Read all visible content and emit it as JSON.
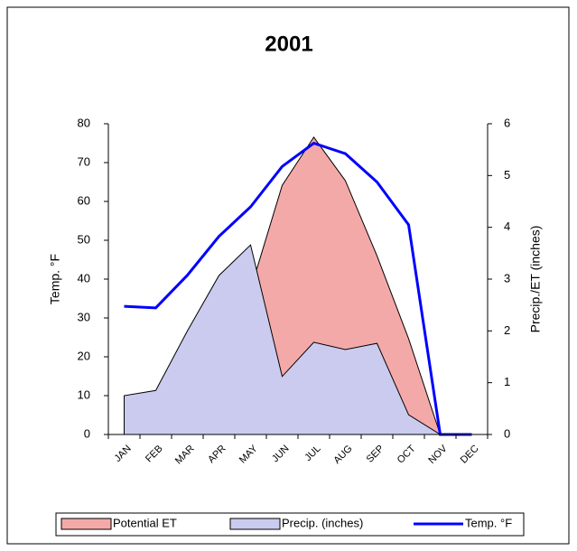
{
  "chart_data": {
    "type": "area-line",
    "title": "2001",
    "y_label": "Temp. °F",
    "y2_label": "Precip./ET (inches)",
    "categories": [
      "JAN",
      "FEB",
      "MAR",
      "APR",
      "MAY",
      "JUN",
      "JUL",
      "AUG",
      "SEP",
      "OCT",
      "NOV",
      "DEC"
    ],
    "series": [
      {
        "name": "Potential ET",
        "kind": "area",
        "axis": "y2",
        "color": "#f4a9a9",
        "values": [
          null,
          null,
          null,
          null,
          2.8,
          4.81,
          5.74,
          4.9,
          3.45,
          1.85,
          0,
          null
        ]
      },
      {
        "name": "Precip. (inches)",
        "kind": "area",
        "axis": "y2",
        "color": "#cbcbef",
        "values": [
          0.75,
          0.85,
          2.0,
          3.07,
          3.66,
          1.12,
          1.78,
          1.64,
          1.76,
          0.38,
          0,
          null
        ]
      },
      {
        "name": "Temp. °F",
        "kind": "line",
        "axis": "y",
        "color": "#0000ff",
        "values": [
          33,
          32.6,
          41,
          51,
          58.6,
          69,
          75,
          72.3,
          65,
          54,
          0,
          0
        ]
      }
    ],
    "ylim": [
      0,
      80
    ],
    "yticks": [
      0,
      10,
      20,
      30,
      40,
      50,
      60,
      70,
      80
    ],
    "y2lim": [
      0,
      6
    ],
    "y2ticks": [
      0,
      1,
      2,
      3,
      4,
      5,
      6
    ],
    "legend": "bottom"
  }
}
